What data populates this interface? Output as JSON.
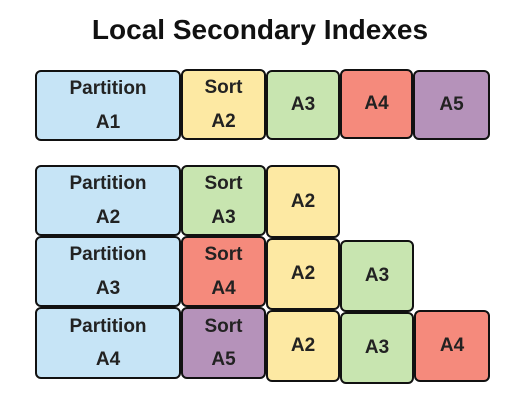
{
  "title": "Local Secondary Indexes",
  "colors": {
    "partition": "#c6e4f6",
    "A1": "#fde9a3",
    "A2": "#fde9a3",
    "A3": "#c8e5b0",
    "A4": "#f58a7c",
    "A5": "#b592ba",
    "sort_A2": "#fde9a3"
  },
  "base_table": {
    "partition": [
      "Partition",
      "A1"
    ],
    "sort": [
      "Sort",
      "A2"
    ],
    "attributes": [
      "A3",
      "A4",
      "A5"
    ]
  },
  "indexes": [
    {
      "partition": [
        "Partition",
        "A2"
      ],
      "sort": [
        "Sort",
        "A3"
      ],
      "attributes": [
        "A2"
      ]
    },
    {
      "partition": [
        "Partition",
        "A3"
      ],
      "sort": [
        "Sort",
        "A4"
      ],
      "attributes": [
        "A2",
        "A3"
      ]
    },
    {
      "partition": [
        "Partition",
        "A4"
      ],
      "sort": [
        "Sort",
        "A5"
      ],
      "attributes": [
        "A2",
        "A3",
        "A4"
      ]
    }
  ]
}
